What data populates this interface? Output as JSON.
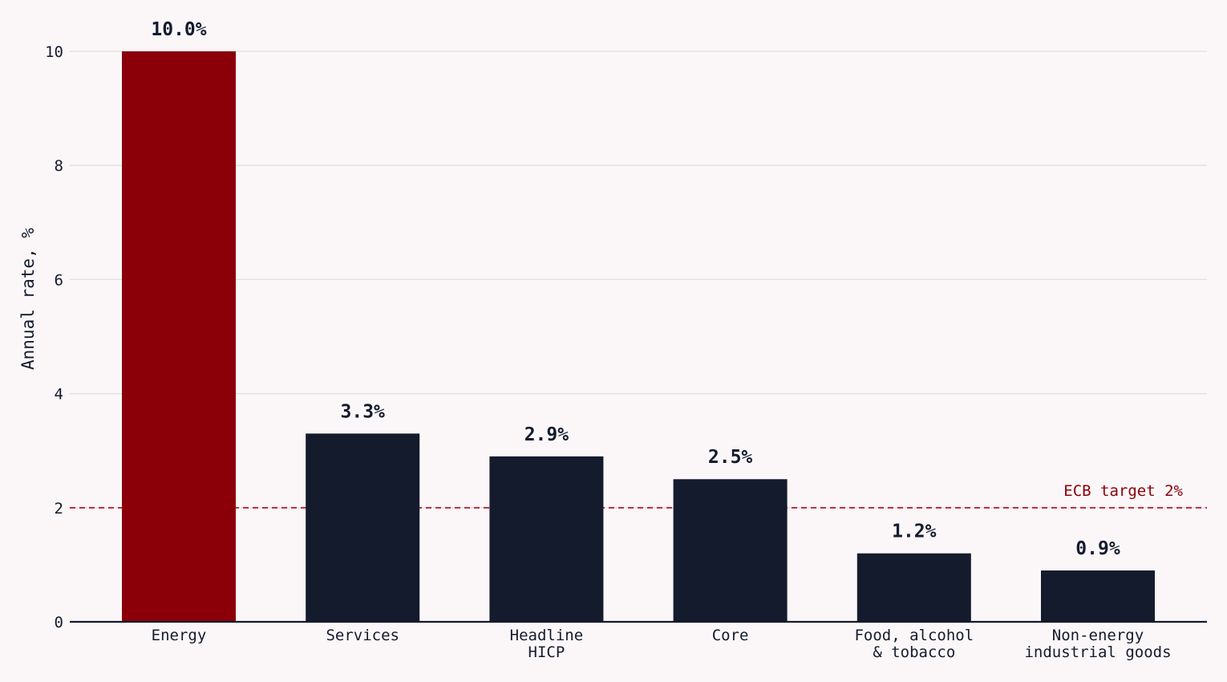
{
  "chart_data": {
    "type": "bar",
    "title": "",
    "xlabel": "",
    "ylabel": "Annual rate, %",
    "ylim": [
      0,
      10.9
    ],
    "yticks": [
      0,
      2,
      4,
      6,
      8,
      10
    ],
    "grid": true,
    "categories": [
      [
        "Energy"
      ],
      [
        "Services"
      ],
      [
        "Headline",
        "HICP"
      ],
      [
        "Core"
      ],
      [
        "Food, alcohol",
        "& tobacco"
      ],
      [
        "Non-energy",
        "industrial goods"
      ]
    ],
    "values": [
      10.0,
      3.3,
      2.9,
      2.5,
      1.2,
      0.9
    ],
    "value_labels": [
      "10.0%",
      "3.3%",
      "2.9%",
      "2.5%",
      "1.2%",
      "0.9%"
    ],
    "highlight_index": 0,
    "reference_line": {
      "value": 2,
      "label": "ECB target 2%"
    },
    "colors": {
      "highlight": "#8b0008",
      "bar": "#141b2d",
      "reference": "#b0202e",
      "grid": "#e2dde0",
      "axis": "#141b2d",
      "text": "#141b2d"
    }
  }
}
